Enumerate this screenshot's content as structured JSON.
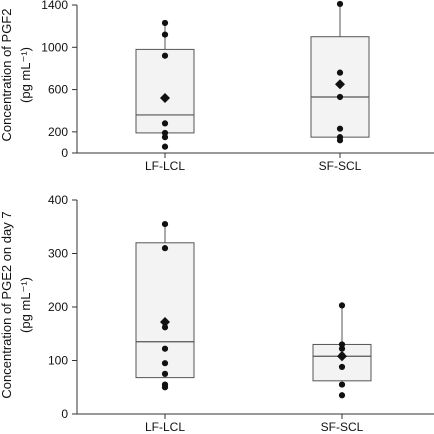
{
  "chart_data": [
    {
      "type": "box",
      "ylabel_line1": "Concentration of PGF2",
      "ylabel_line2": "(pg mL⁻¹)",
      "yticks": [
        0,
        200,
        600,
        1000,
        1400
      ],
      "tick_labels": [
        "0",
        "200",
        "600",
        "1000",
        "1400"
      ],
      "ylim": [
        0,
        1400
      ],
      "categories": [
        "LF-LCL",
        "SF-SCL"
      ],
      "boxes": [
        {
          "q1": 190,
          "median": 360,
          "q3": 980,
          "whisker_low": 190,
          "whisker_high": 1230,
          "mean": 520,
          "points": [
            1230,
            1120,
            920,
            520,
            280,
            190,
            150,
            60
          ]
        },
        {
          "q1": 150,
          "median": 530,
          "q3": 1100,
          "whisker_low": 150,
          "whisker_high": 1410,
          "mean": 650,
          "points": [
            1410,
            760,
            650,
            530,
            230,
            150,
            120
          ]
        }
      ]
    },
    {
      "type": "box",
      "ylabel_line1": "Concentration of PGE2 on day 7",
      "ylabel_line2": "(pg mL⁻¹)",
      "yticks": [
        0,
        100,
        200,
        300,
        400
      ],
      "tick_labels": [
        "0",
        "100",
        "200",
        "300",
        "400"
      ],
      "ylim": [
        0,
        400
      ],
      "categories": [
        "LF-LCL",
        "SF-SCL"
      ],
      "boxes": [
        {
          "q1": 68,
          "median": 135,
          "q3": 320,
          "whisker_low": 68,
          "whisker_high": 355,
          "mean": 172,
          "points": [
            355,
            310,
            172,
            162,
            122,
            95,
            75,
            55,
            50
          ]
        },
        {
          "q1": 62,
          "median": 108,
          "q3": 130,
          "whisker_low": 62,
          "whisker_high": 203,
          "mean": 108,
          "points": [
            203,
            130,
            122,
            110,
            88,
            55,
            35
          ]
        }
      ]
    }
  ]
}
